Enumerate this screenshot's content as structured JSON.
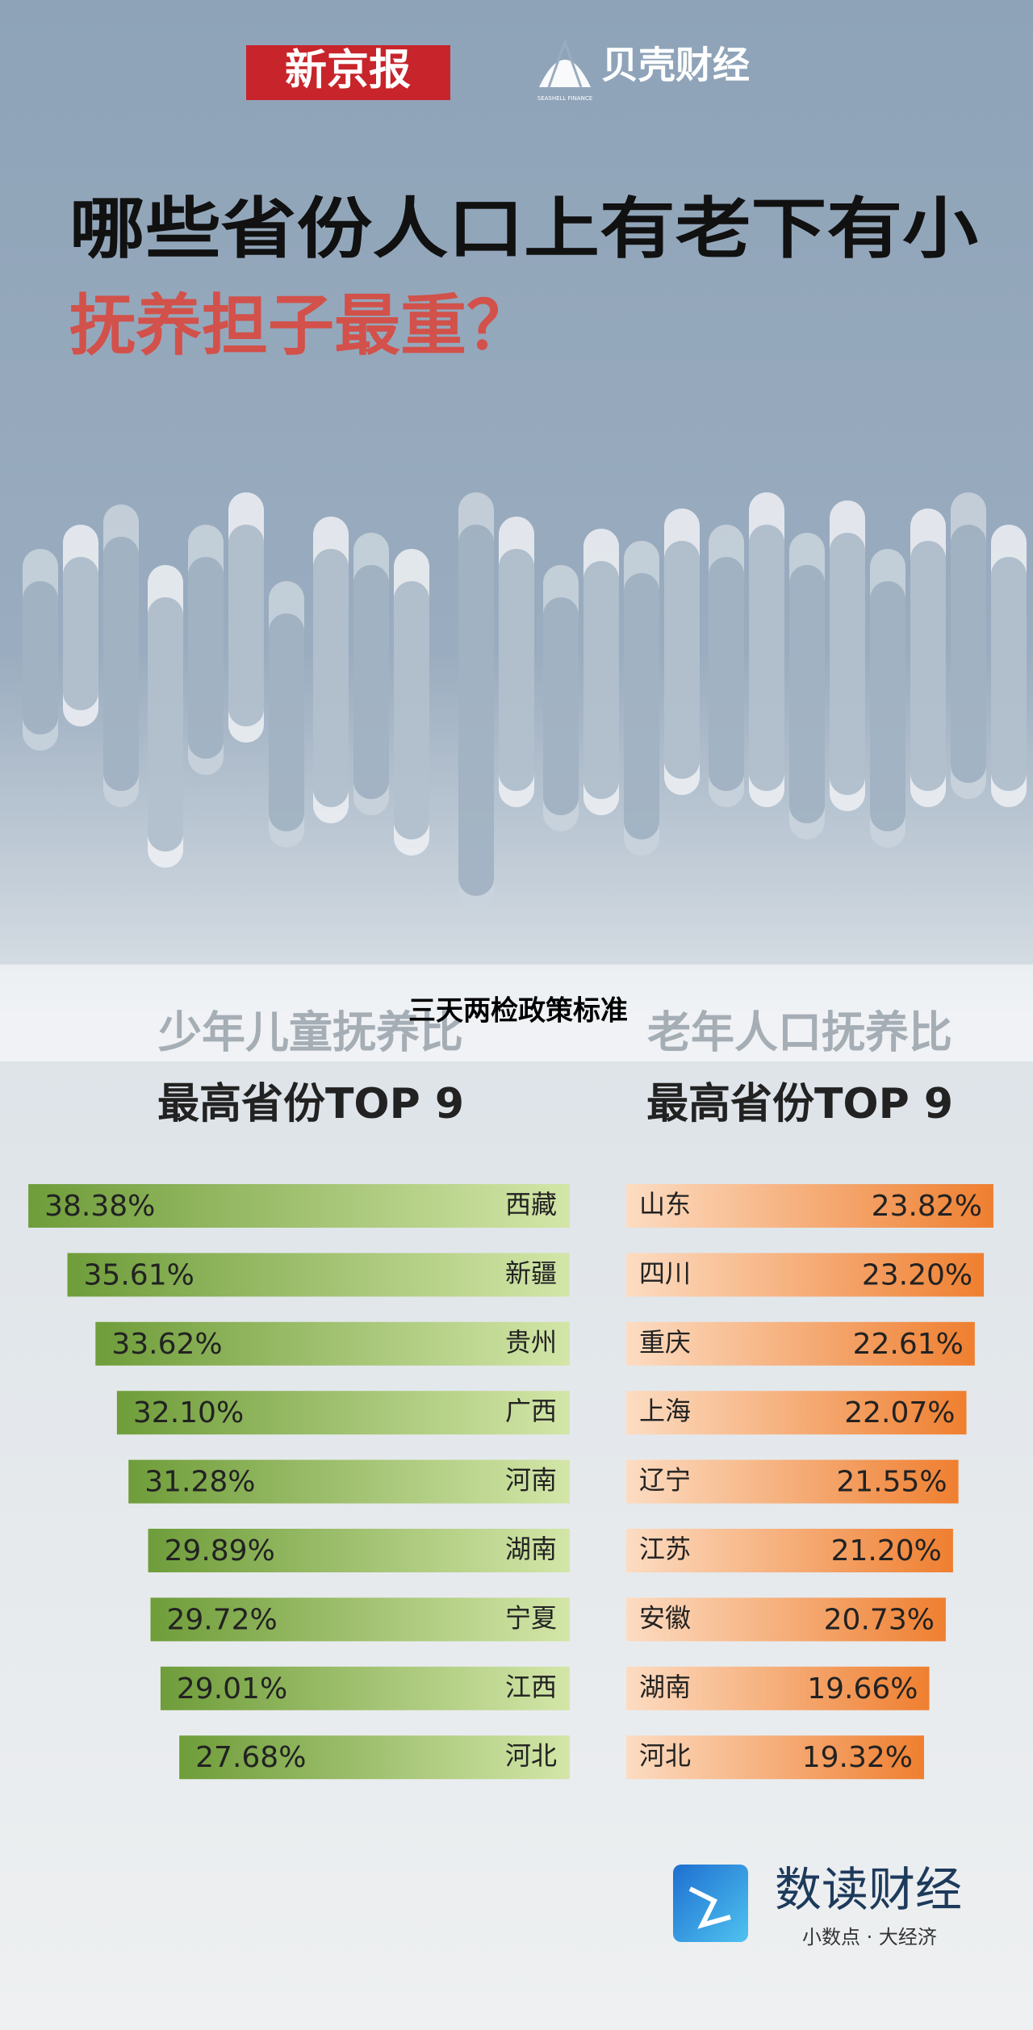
{
  "header": {
    "brand1": "新京报",
    "brand2": "贝壳财经",
    "brand2_sub": "SEASHELL FINANCE",
    "title": "哪些省份人口上有老下有小",
    "subtitle": "抚养担子最重？"
  },
  "overlay": "三天两检政策标准",
  "chart_data": [
    {
      "type": "bar",
      "title": "少年儿童抚养比",
      "subtitle": "最高省份TOP 9",
      "color": "#7aab45",
      "categories": [
        "西藏",
        "新疆",
        "贵州",
        "广西",
        "河南",
        "湖南",
        "宁夏",
        "江西",
        "河北"
      ],
      "values": [
        38.38,
        35.61,
        33.62,
        32.1,
        31.28,
        29.89,
        29.72,
        29.01,
        27.68
      ],
      "value_labels": [
        "38.38%",
        "35.61%",
        "33.62%",
        "32.10%",
        "31.28%",
        "29.89%",
        "29.72%",
        "29.01%",
        "27.68%"
      ]
    },
    {
      "type": "bar",
      "title": "老年人口抚养比",
      "subtitle": "最高省份TOP 9",
      "color": "#f0893d",
      "categories": [
        "山东",
        "四川",
        "重庆",
        "上海",
        "辽宁",
        "江苏",
        "安徽",
        "湖南",
        "河北"
      ],
      "values": [
        23.82,
        23.2,
        22.61,
        22.07,
        21.55,
        21.2,
        20.73,
        19.66,
        19.32
      ],
      "value_labels": [
        "23.82%",
        "23.20%",
        "22.61%",
        "22.07%",
        "21.55%",
        "21.20%",
        "20.73%",
        "19.66%",
        "19.32%"
      ]
    }
  ],
  "footer": {
    "brand": "数读财经",
    "slogan": "小数点 · 大经济"
  }
}
